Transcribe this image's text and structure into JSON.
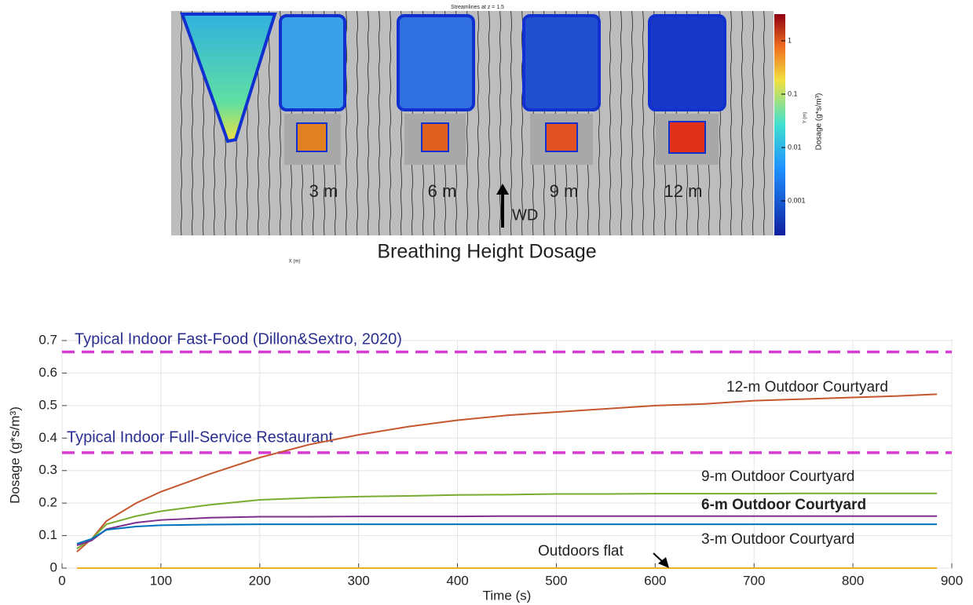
{
  "panel": {
    "title": "Streamlines at z = 1.5",
    "caption": "Breathing Height Dosage",
    "wind_label": "WD",
    "building_labels": [
      "3 m",
      "6 m",
      "9 m",
      "12 m"
    ],
    "x_label": "X (m)",
    "y_label": "Y (m)",
    "colorbar": {
      "label": "Dosage (g*s/m³)",
      "log": true,
      "ticks": [
        1,
        0.1,
        0.01,
        0.001
      ]
    }
  },
  "chart_data": {
    "type": "line",
    "x": [
      15,
      30,
      45,
      75,
      100,
      150,
      200,
      250,
      300,
      350,
      400,
      450,
      500,
      550,
      600,
      650,
      700,
      750,
      800,
      850,
      885
    ],
    "series": [
      {
        "name": "12-m Outdoor Courtyard",
        "color": "#c5562f",
        "values": [
          0.05,
          0.09,
          0.145,
          0.2,
          0.235,
          0.29,
          0.34,
          0.38,
          0.41,
          0.435,
          0.455,
          0.47,
          0.48,
          0.49,
          0.5,
          0.505,
          0.515,
          0.52,
          0.525,
          0.53,
          0.535
        ]
      },
      {
        "name": "9-m Outdoor Courtyard",
        "color": "#77ac30",
        "values": [
          0.06,
          0.09,
          0.135,
          0.16,
          0.175,
          0.195,
          0.21,
          0.216,
          0.22,
          0.222,
          0.225,
          0.226,
          0.228,
          0.228,
          0.229,
          0.229,
          0.229,
          0.23,
          0.23,
          0.23,
          0.23
        ]
      },
      {
        "name": "6-m Outdoor Courtyard",
        "color": "#7e2f8e",
        "values": [
          0.07,
          0.085,
          0.12,
          0.14,
          0.148,
          0.155,
          0.158,
          0.158,
          0.159,
          0.159,
          0.159,
          0.16,
          0.16,
          0.16,
          0.16,
          0.16,
          0.16,
          0.16,
          0.16,
          0.16,
          0.16
        ]
      },
      {
        "name": "3-m Outdoor Courtyard",
        "color": "#0072bd",
        "values": [
          0.075,
          0.09,
          0.118,
          0.128,
          0.132,
          0.134,
          0.135,
          0.135,
          0.135,
          0.135,
          0.135,
          0.135,
          0.135,
          0.135,
          0.135,
          0.135,
          0.135,
          0.135,
          0.135,
          0.135,
          0.135
        ]
      },
      {
        "name": "Outdoors flat",
        "color": "#edb120",
        "values": [
          0,
          0,
          0,
          0,
          0,
          0,
          0,
          0,
          0,
          0,
          0,
          0,
          0,
          0,
          0,
          0,
          0,
          0,
          0,
          0,
          0
        ]
      }
    ],
    "reference_lines": [
      {
        "label": "Typical Indoor Fast-Food (Dillon&Sextro, 2020)",
        "value": 0.665,
        "color": "#d53bd5"
      },
      {
        "label": "Typical Indoor Full-Service Restaurant",
        "value": 0.355,
        "color": "#d53bd5"
      }
    ],
    "xlabel": "Time (s)",
    "ylabel": "Dosage (g*s/m³)",
    "xlim": [
      0,
      900
    ],
    "xticks": [
      0,
      100,
      200,
      300,
      400,
      500,
      600,
      700,
      800,
      900
    ],
    "ylim": [
      0,
      0.7
    ],
    "yticks": [
      0,
      0.1,
      0.2,
      0.3,
      0.4,
      0.5,
      0.6,
      0.7
    ],
    "grid": true
  }
}
